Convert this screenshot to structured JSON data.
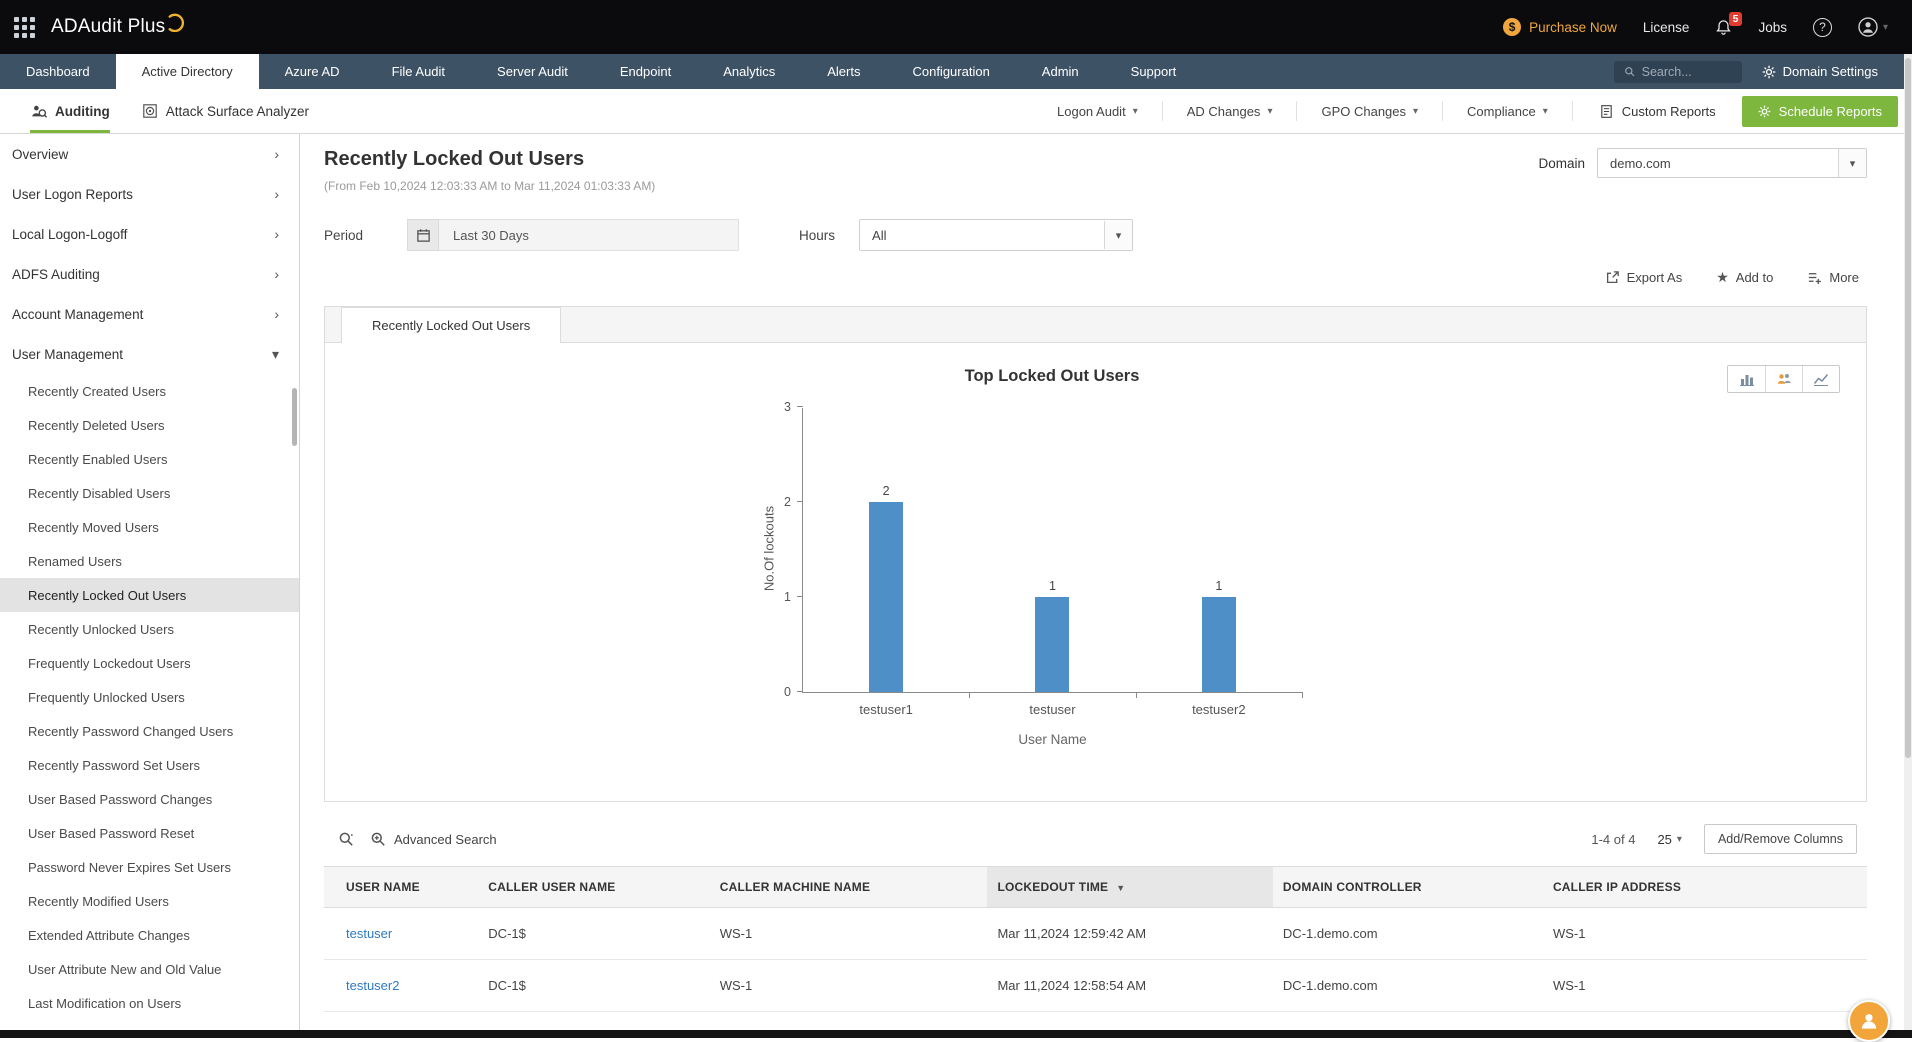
{
  "topbar": {
    "app_name": "ADAudit Plus",
    "purchase_now": "Purchase Now",
    "license": "License",
    "notification_count": "5",
    "jobs": "Jobs",
    "help": "?"
  },
  "navbar": {
    "tabs": [
      "Dashboard",
      "Active Directory",
      "Azure AD",
      "File Audit",
      "Server Audit",
      "Endpoint",
      "Analytics",
      "Alerts",
      "Configuration",
      "Admin",
      "Support"
    ],
    "active_tab": "Active Directory",
    "search_placeholder": "Search...",
    "domain_settings": "Domain Settings"
  },
  "toolbar": {
    "auditing": "Auditing",
    "attack_surface_analyzer": "Attack Surface Analyzer",
    "menus": [
      "Logon Audit",
      "AD Changes",
      "GPO Changes",
      "Compliance"
    ],
    "custom_reports": "Custom Reports",
    "schedule_reports": "Schedule Reports"
  },
  "sidebar": {
    "selected": "Recently Locked Out Users",
    "items": [
      {
        "label": "Overview",
        "expanded": false
      },
      {
        "label": "User Logon Reports",
        "expanded": false
      },
      {
        "label": "Local Logon-Logoff",
        "expanded": false
      },
      {
        "label": "ADFS Auditing",
        "expanded": false
      },
      {
        "label": "Account Management",
        "expanded": false
      },
      {
        "label": "User Management",
        "expanded": true,
        "children": [
          "Recently Created Users",
          "Recently Deleted Users",
          "Recently Enabled Users",
          "Recently Disabled Users",
          "Recently Moved Users",
          "Renamed Users",
          "Recently Locked Out Users",
          "Recently Unlocked Users",
          "Frequently Lockedout Users",
          "Frequently Unlocked Users",
          "Recently Password Changed Users",
          "Recently Password Set Users",
          "User Based Password Changes",
          "User Based Password Reset",
          "Password Never Expires Set Users",
          "Recently Modified Users",
          "Extended Attribute Changes",
          "User Attribute New and Old Value",
          "Last Modification on Users"
        ]
      }
    ]
  },
  "report": {
    "title": "Recently Locked Out Users",
    "date_range": "(From Feb 10,2024 12:03:33 AM to Mar 11,2024 01:03:33 AM)",
    "domain_label": "Domain",
    "domain_value": "demo.com",
    "period_label": "Period",
    "period_value": "Last 30 Days",
    "hours_label": "Hours",
    "hours_value": "All",
    "export_as": "Export As",
    "add_to": "Add to",
    "more": "More",
    "tab_label": "Recently Locked Out Users"
  },
  "chart_data": {
    "type": "bar",
    "title": "Top Locked Out Users",
    "categories": [
      "testuser1",
      "testuser",
      "testuser2"
    ],
    "values": [
      2,
      1,
      1
    ],
    "xlabel": "User Name",
    "ylabel": "No.Of lockouts",
    "ylim": [
      0,
      3
    ],
    "yticks": [
      0,
      1,
      2,
      3
    ],
    "grid": false,
    "legend": false,
    "bar_color": "#4d8fc6"
  },
  "table": {
    "advanced_search": "Advanced Search",
    "pagination": "1-4 of 4",
    "page_size": "25",
    "add_remove_columns": "Add/Remove Columns",
    "columns": [
      "USER NAME",
      "CALLER USER NAME",
      "CALLER MACHINE NAME",
      "LOCKEDOUT TIME",
      "DOMAIN CONTROLLER",
      "CALLER IP ADDRESS"
    ],
    "sorted_column": "LOCKEDOUT TIME",
    "sort_direction": "desc",
    "rows": [
      [
        "testuser",
        "DC-1$",
        "WS-1",
        "Mar 11,2024 12:59:42 AM",
        "DC-1.demo.com",
        "WS-1"
      ],
      [
        "testuser2",
        "DC-1$",
        "WS-1",
        "Mar 11,2024 12:58:54 AM",
        "DC-1.demo.com",
        "WS-1"
      ]
    ]
  },
  "colors": {
    "accent_green": "#7eb73e",
    "navbar_blue": "#3e5266",
    "link_blue": "#2e7bbf",
    "bar_blue": "#4d8fc6",
    "brand_orange": "#f0a63c",
    "badge_red": "#e03c31"
  },
  "icons": {
    "caret_down": "▾",
    "chevron_right": "›",
    "sort_desc": "▼",
    "star": "★",
    "dollar": "$"
  }
}
